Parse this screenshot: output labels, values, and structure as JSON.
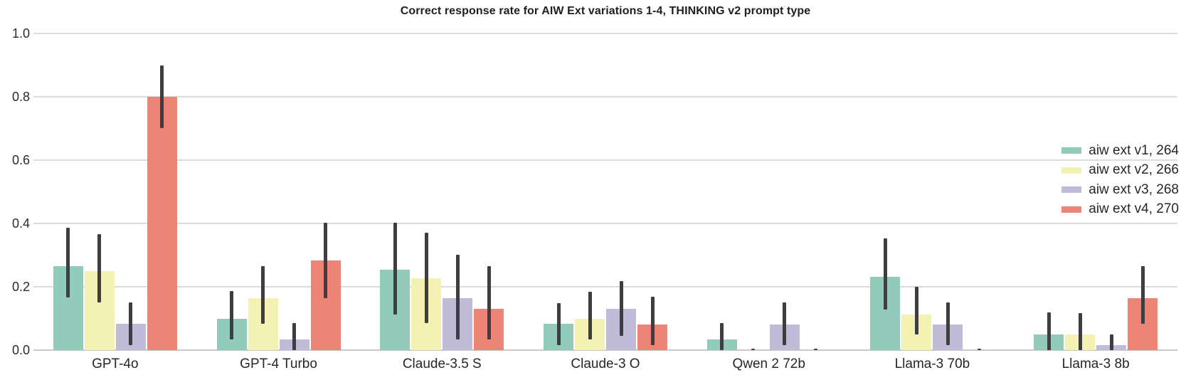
{
  "chart_data": {
    "type": "bar",
    "title": "Correct response rate for AIW Ext variations 1-4, THINKING v2 prompt type",
    "xlabel": "",
    "ylabel": "",
    "ylim": [
      0.0,
      1.0
    ],
    "yticks": [
      0.0,
      0.2,
      0.4,
      0.6,
      0.8,
      1.0
    ],
    "ytick_labels": [
      "0.0",
      "0.2",
      "0.4",
      "0.6",
      "0.8",
      "1.0"
    ],
    "grid": "horizontal",
    "legend_position": "right",
    "error_bars": true,
    "error_bar_color": "#3d3d42",
    "gridline_color": "#dcdcdc",
    "categories": [
      "GPT-4o",
      "GPT-4 Turbo",
      "Claude-3.5 S",
      "Claude-3 O",
      "Qwen 2 72b",
      "Llama-3 70b",
      "Llama-3 8b"
    ],
    "series": [
      {
        "name": "aiw ext v1, 264",
        "color": "#92cbba",
        "values": [
          0.265,
          0.1,
          0.255,
          0.083,
          0.034,
          0.232,
          0.049
        ],
        "err_low": [
          0.167,
          0.034,
          0.112,
          0.015,
          0.0,
          0.129,
          0.0
        ],
        "err_high": [
          0.386,
          0.186,
          0.402,
          0.149,
          0.086,
          0.352,
          0.119
        ]
      },
      {
        "name": "aiw ext v2, 266",
        "color": "#f4f2b3",
        "values": [
          0.249,
          0.165,
          0.226,
          0.098,
          0.0,
          0.113,
          0.049
        ],
        "err_low": [
          0.151,
          0.083,
          0.086,
          0.034,
          0.0,
          0.049,
          0.0
        ],
        "err_high": [
          0.367,
          0.266,
          0.371,
          0.184,
          0.004,
          0.199,
          0.117
        ]
      },
      {
        "name": "aiw ext v3, 268",
        "color": "#c0bcd8",
        "values": [
          0.083,
          0.034,
          0.164,
          0.131,
          0.082,
          0.082,
          0.015
        ],
        "err_low": [
          0.015,
          0.0,
          0.034,
          0.045,
          0.015,
          0.015,
          0.0
        ],
        "err_high": [
          0.15,
          0.086,
          0.302,
          0.217,
          0.15,
          0.15,
          0.049
        ]
      },
      {
        "name": "aiw ext v4, 270",
        "color": "#ec8576",
        "values": [
          0.799,
          0.284,
          0.13,
          0.082,
          0.0,
          0.0,
          0.164
        ],
        "err_low": [
          0.701,
          0.164,
          0.034,
          0.015,
          0.0,
          0.0,
          0.082
        ],
        "err_high": [
          0.898,
          0.403,
          0.265,
          0.168,
          0.004,
          0.004,
          0.265
        ]
      }
    ]
  }
}
